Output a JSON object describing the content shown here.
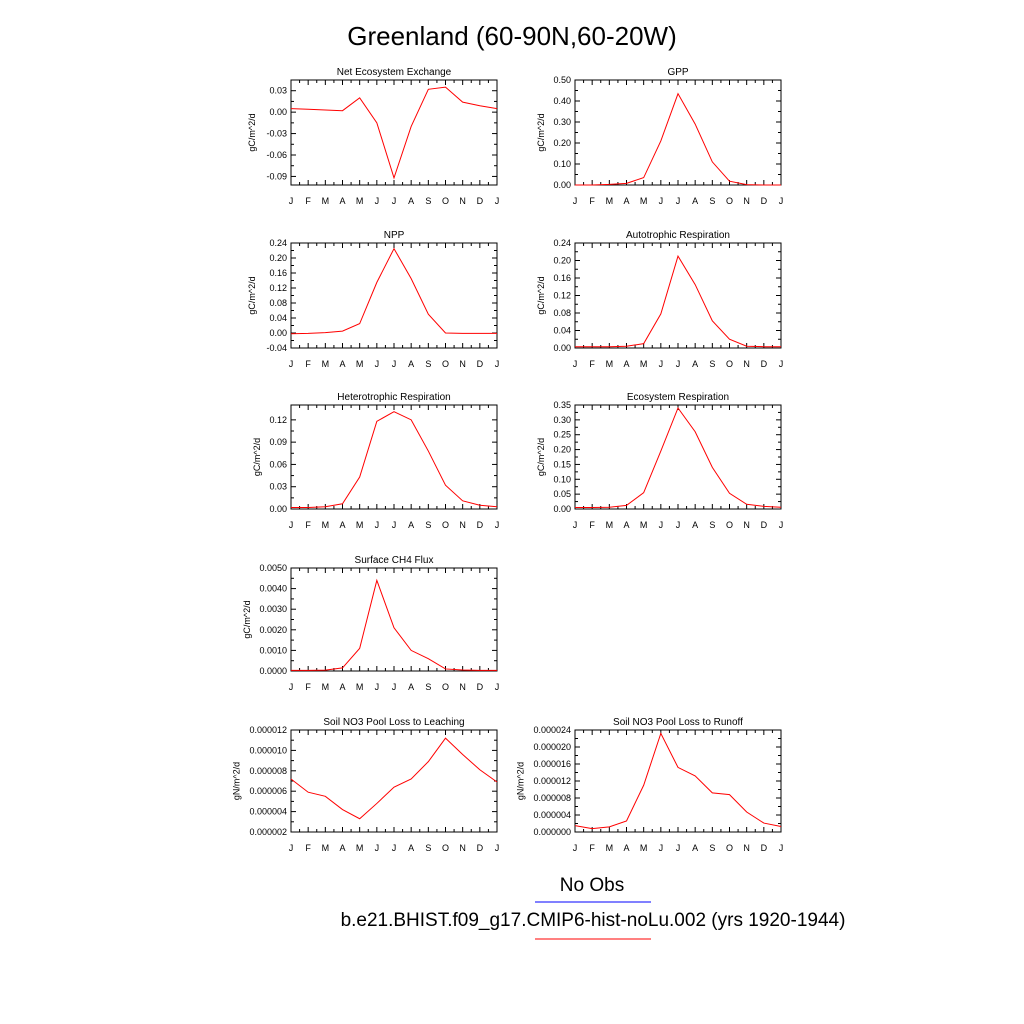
{
  "title": "Greenland (60-90N,60-20W)",
  "colors": {
    "model_line": "#ff0000",
    "obs_line": "#0000ff",
    "axis": "#000000"
  },
  "month_labels": [
    "J",
    "F",
    "M",
    "A",
    "M",
    "J",
    "J",
    "A",
    "S",
    "O",
    "N",
    "D",
    "J"
  ],
  "legend": [
    {
      "label": "No Obs",
      "color": "#0000ff"
    },
    {
      "label": "b.e21.BHIST.f09_g17.CMIP6-hist-noLu.002 (yrs 1920-1944)",
      "color": "#ff0000"
    }
  ],
  "chart_data": [
    {
      "type": "line",
      "title": "Net Ecosystem Exchange",
      "ylabel": "gC/m^2/d",
      "ylim": [
        -0.102,
        0.045
      ],
      "ytick_values": [
        0.03,
        0.0,
        -0.03,
        -0.06,
        -0.09
      ],
      "yticks": [
        "0.03",
        "0.00",
        "-0.03",
        "-0.06",
        "-0.09"
      ],
      "series": [
        {
          "values": [
            0.005,
            0.004,
            0.003,
            0.002,
            0.02,
            -0.015,
            -0.092,
            -0.02,
            0.032,
            0.035,
            0.014,
            0.009,
            0.005
          ]
        }
      ]
    },
    {
      "type": "line",
      "title": "GPP",
      "ylabel": "gC/m^2/d",
      "ylim": [
        0.0,
        0.5
      ],
      "ytick_values": [
        0.0,
        0.1,
        0.2,
        0.3,
        0.4,
        0.5
      ],
      "yticks": [
        "0.00",
        "0.10",
        "0.20",
        "0.30",
        "0.40",
        "0.50"
      ],
      "series": [
        {
          "values": [
            0.0,
            0.0,
            0.003,
            0.008,
            0.035,
            0.21,
            0.435,
            0.29,
            0.11,
            0.018,
            0.002,
            0.0,
            0.0
          ]
        }
      ]
    },
    {
      "type": "line",
      "title": "NPP",
      "ylabel": "gC/m^2/d",
      "ylim": [
        -0.04,
        0.24
      ],
      "ytick_values": [
        -0.04,
        0.0,
        0.04,
        0.08,
        0.12,
        0.16,
        0.2,
        0.24
      ],
      "yticks": [
        "-0.04",
        "0.00",
        "0.04",
        "0.08",
        "0.12",
        "0.16",
        "0.20",
        "0.24"
      ],
      "series": [
        {
          "values": [
            -0.002,
            -0.001,
            0.001,
            0.005,
            0.025,
            0.135,
            0.225,
            0.145,
            0.05,
            0.0,
            -0.001,
            -0.001,
            -0.001
          ]
        }
      ]
    },
    {
      "type": "line",
      "title": "Autotrophic Respiration",
      "ylabel": "gC/m^2/d",
      "ylim": [
        0.0,
        0.24
      ],
      "ytick_values": [
        0.0,
        0.04,
        0.08,
        0.12,
        0.16,
        0.2,
        0.24
      ],
      "yticks": [
        "0.00",
        "0.04",
        "0.08",
        "0.12",
        "0.16",
        "0.20",
        "0.24"
      ],
      "series": [
        {
          "values": [
            0.003,
            0.003,
            0.003,
            0.004,
            0.01,
            0.078,
            0.21,
            0.145,
            0.062,
            0.02,
            0.004,
            0.003,
            0.003
          ]
        }
      ]
    },
    {
      "type": "line",
      "title": "Heterotrophic Respiration",
      "ylabel": "gC/m^2/d",
      "ylim": [
        0.0,
        0.14
      ],
      "ytick_values": [
        0.0,
        0.03,
        0.06,
        0.09,
        0.12
      ],
      "yticks": [
        "0.00",
        "0.03",
        "0.06",
        "0.09",
        "0.12"
      ],
      "series": [
        {
          "values": [
            0.002,
            0.002,
            0.003,
            0.007,
            0.043,
            0.118,
            0.131,
            0.12,
            0.078,
            0.032,
            0.011,
            0.005,
            0.003
          ]
        }
      ]
    },
    {
      "type": "line",
      "title": "Ecosystem Respiration",
      "ylabel": "gC/m^2/d",
      "ylim": [
        0.0,
        0.35
      ],
      "ytick_values": [
        0.0,
        0.05,
        0.1,
        0.15,
        0.2,
        0.25,
        0.3,
        0.35
      ],
      "yticks": [
        "0.00",
        "0.05",
        "0.10",
        "0.15",
        "0.20",
        "0.25",
        "0.30",
        "0.35"
      ],
      "series": [
        {
          "values": [
            0.005,
            0.005,
            0.006,
            0.012,
            0.055,
            0.195,
            0.34,
            0.26,
            0.14,
            0.053,
            0.016,
            0.009,
            0.006
          ]
        }
      ]
    },
    {
      "type": "line",
      "title": "Surface CH4 Flux",
      "ylabel": "gC/m^2/d",
      "ylim": [
        0.0,
        0.005
      ],
      "ytick_values": [
        0.0,
        0.001,
        0.002,
        0.003,
        0.004,
        0.005
      ],
      "yticks": [
        "0.0000",
        "0.0010",
        "0.0020",
        "0.0030",
        "0.0040",
        "0.0050"
      ],
      "series": [
        {
          "values": [
            3e-05,
            3e-05,
            4e-05,
            0.00015,
            0.0011,
            0.0044,
            0.0021,
            0.001,
            0.0006,
            0.0001,
            5e-05,
            3e-05,
            3e-05
          ]
        }
      ]
    },
    {
      "type": "line",
      "title": "Soil NO3 Pool Loss to Leaching",
      "ylabel": "gN/m^2/d",
      "ylim": [
        2e-06,
        1.2e-05
      ],
      "ytick_values": [
        2e-06,
        4e-06,
        6e-06,
        8e-06,
        1e-05,
        1.2e-05
      ],
      "yticks": [
        "0.000002",
        "0.000004",
        "0.000006",
        "0.000008",
        "0.000010",
        "0.000012"
      ],
      "series": [
        {
          "values": [
            7.2e-06,
            5.9e-06,
            5.5e-06,
            4.2e-06,
            3.3e-06,
            4.8e-06,
            6.4e-06,
            7.2e-06,
            8.9e-06,
            1.12e-05,
            9.6e-06,
            8.1e-06,
            6.9e-06
          ]
        }
      ]
    },
    {
      "type": "line",
      "title": "Soil NO3 Pool Loss to Runoff",
      "ylabel": "gN/m^2/d",
      "ylim": [
        0.0,
        2.4e-05
      ],
      "ytick_values": [
        0.0,
        4e-06,
        8e-06,
        1.2e-05,
        1.6e-05,
        2e-05,
        2.4e-05
      ],
      "yticks": [
        "0.000000",
        "0.000004",
        "0.000008",
        "0.000012",
        "0.000016",
        "0.000020",
        "0.000024"
      ],
      "series": [
        {
          "values": [
            1.5e-06,
            8e-07,
            1.2e-06,
            2.6e-06,
            1.1e-05,
            2.32e-05,
            1.52e-05,
            1.32e-05,
            9.2e-06,
            8.8e-06,
            4.7e-06,
            2.1e-06,
            1.3e-06
          ]
        }
      ]
    }
  ]
}
